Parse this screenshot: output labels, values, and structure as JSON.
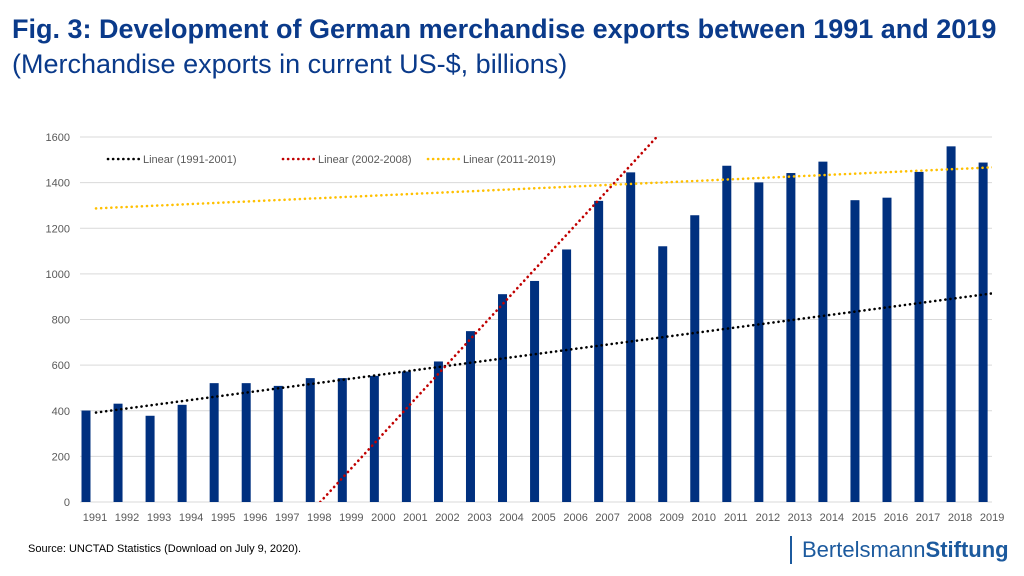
{
  "title": {
    "bold": "Fig. 3: Development of German merchandise exports between 1991 and 2019",
    "normal": "(Merchandise exports in current US-$, billions)"
  },
  "source": "Source: UNCTAD Statistics (Download on July 9, 2020).",
  "logo": {
    "part1": "Bertelsmann",
    "part2": "Stiftung"
  },
  "colors": {
    "bars": "#00307f",
    "title": "#0a3a8a",
    "trend_1991_2001": "#000000",
    "trend_2002_2008": "#c00000",
    "trend_2011_2019": "#ffc000"
  },
  "chart_data": {
    "type": "bar",
    "categories": [
      "1991",
      "1992",
      "1993",
      "1994",
      "1995",
      "1996",
      "1997",
      "1998",
      "1999",
      "2000",
      "2001",
      "2002",
      "2003",
      "2004",
      "2005",
      "2006",
      "2007",
      "2008",
      "2009",
      "2010",
      "2011",
      "2012",
      "2013",
      "2014",
      "2015",
      "2016",
      "2017",
      "2018",
      "2019"
    ],
    "values": [
      401,
      431,
      378,
      426,
      521,
      521,
      509,
      543,
      543,
      553,
      572,
      616,
      749,
      911,
      969,
      1107,
      1320,
      1445,
      1121,
      1257,
      1474,
      1401,
      1442,
      1492,
      1323,
      1334,
      1447,
      1559,
      1488
    ],
    "ylim": [
      0,
      1600
    ],
    "yticks": [
      0,
      200,
      400,
      600,
      800,
      1000,
      1200,
      1400,
      1600
    ],
    "grid": true,
    "legend_position": "top-left",
    "trendlines": [
      {
        "name": "Linear (1991-2001)",
        "color": "#000000",
        "from": [
          "1991",
          392
        ],
        "to": [
          "2019",
          915
        ]
      },
      {
        "name": "Linear (2002-2008)",
        "color": "#c00000",
        "from": [
          "1998",
          0
        ],
        "to": [
          "2008.5",
          1600
        ]
      },
      {
        "name": "Linear (2011-2019)",
        "color": "#ffc000",
        "from": [
          "1991",
          1287
        ],
        "to": [
          "2019",
          1467
        ]
      }
    ]
  }
}
